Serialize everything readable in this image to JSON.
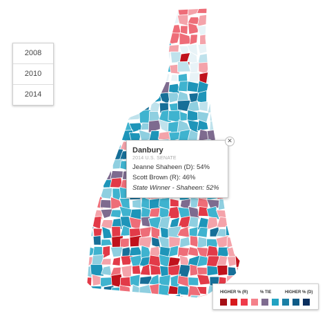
{
  "year_selector": {
    "years": [
      "2008",
      "2010",
      "2014"
    ]
  },
  "tooltip": {
    "title": "Danbury",
    "subtitle": "2014 U.S. SENATE",
    "candidate1": "Jeanne Shaheen (D): 54%",
    "candidate2": "Scott Brown (R): 46%",
    "winner": "State Winner - Shaheen: 52%",
    "close_icon": "close-icon"
  },
  "legend": {
    "label_r": "HIGHER % (R)",
    "label_tie": "% TIE",
    "label_d": "HIGHER % (D)",
    "colors": [
      "#a50f15",
      "#d7191c",
      "#ef3b4a",
      "#f4818a",
      "#7e6b8f",
      "#21a2c2",
      "#1b7fa5",
      "#0f5b87",
      "#0b2f5e"
    ]
  },
  "map": {
    "region": "New Hampshire",
    "town_colors": [
      "#bfe2ec",
      "#8fcfe0",
      "#3fb3cf",
      "#1e95b9",
      "#176f98",
      "#f4a3aa",
      "#ee6d78",
      "#e23a48",
      "#c0121c",
      "#7e6b8f",
      "#e8f3f7"
    ]
  }
}
